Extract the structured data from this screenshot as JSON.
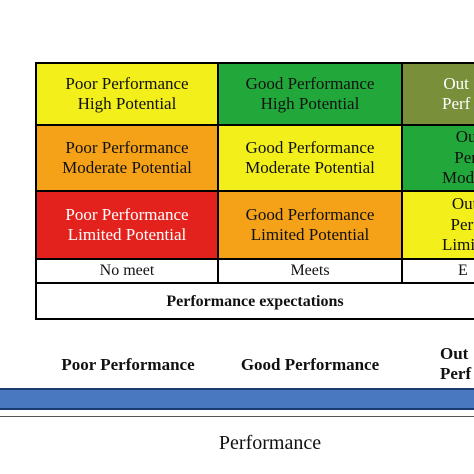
{
  "grid": {
    "rows": [
      [
        {
          "text": "Poor Performance\nHigh Potential",
          "color": "#f2ef1a",
          "text_color": "#111"
        },
        {
          "text": "Good Performance\nHigh Potential",
          "color": "#22a83a",
          "text_color": "#111"
        },
        {
          "text": "Out\nPerf",
          "color": "#7a8f3a",
          "text_color": "#fff"
        }
      ],
      [
        {
          "text": "Poor Performance\nModerate Potential",
          "color": "#f5a219",
          "text_color": "#111"
        },
        {
          "text": "Good Performance\nModerate Potential",
          "color": "#f2ef1a",
          "text_color": "#111"
        },
        {
          "text": "Out\nPerf\nModera",
          "color": "#22a83a",
          "text_color": "#111"
        }
      ],
      [
        {
          "text": "Poor Performance\nLimited Potential",
          "color": "#e3221d",
          "text_color": "#fff"
        },
        {
          "text": "Good Performance\nLimited Potential",
          "color": "#f5a219",
          "text_color": "#111"
        },
        {
          "text": "Out\nPerf\nLimite",
          "color": "#f2ef1a",
          "text_color": "#111"
        }
      ]
    ],
    "columns": [
      "No meet",
      "Meets",
      "E"
    ],
    "axis_title": "Performance expectations"
  },
  "scale": {
    "labels": [
      "Poor Performance",
      "Good Performance",
      "Out\nPerf"
    ],
    "bar_color": "#4a78c0",
    "caption": "Performance"
  }
}
